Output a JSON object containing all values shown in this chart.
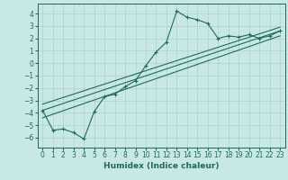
{
  "xlabel": "Humidex (Indice chaleur)",
  "ylabel": "",
  "bg_color": "#c8e8e8",
  "line_color": "#1a6b5a",
  "grid_color": "#b0d0d0",
  "xlim": [
    -0.5,
    23.5
  ],
  "ylim": [
    -6.8,
    4.8
  ],
  "xticks": [
    0,
    1,
    2,
    3,
    4,
    5,
    6,
    7,
    8,
    9,
    10,
    11,
    12,
    13,
    14,
    15,
    16,
    17,
    18,
    19,
    20,
    21,
    22,
    23
  ],
  "yticks": [
    -6,
    -5,
    -4,
    -3,
    -2,
    -1,
    0,
    1,
    2,
    3,
    4
  ],
  "main_x": [
    0,
    1,
    2,
    3,
    4,
    5,
    6,
    7,
    8,
    9,
    10,
    11,
    12,
    13,
    14,
    15,
    16,
    17,
    18,
    19,
    20,
    21,
    22,
    23
  ],
  "main_y": [
    -3.8,
    -5.4,
    -5.3,
    -5.6,
    -6.1,
    -3.9,
    -2.7,
    -2.5,
    -1.9,
    -1.4,
    -0.2,
    0.9,
    1.7,
    4.2,
    3.7,
    3.5,
    3.2,
    2.0,
    2.2,
    2.1,
    2.3,
    2.0,
    2.2,
    2.6
  ],
  "line1_x": [
    0,
    23
  ],
  "line1_y": [
    -3.8,
    2.6
  ],
  "line2_x": [
    0,
    23
  ],
  "line2_y": [
    -4.4,
    2.2
  ],
  "line3_x": [
    0,
    23
  ],
  "line3_y": [
    -3.3,
    2.9
  ],
  "xlabel_fontsize": 6.5,
  "tick_fontsize": 5.5
}
